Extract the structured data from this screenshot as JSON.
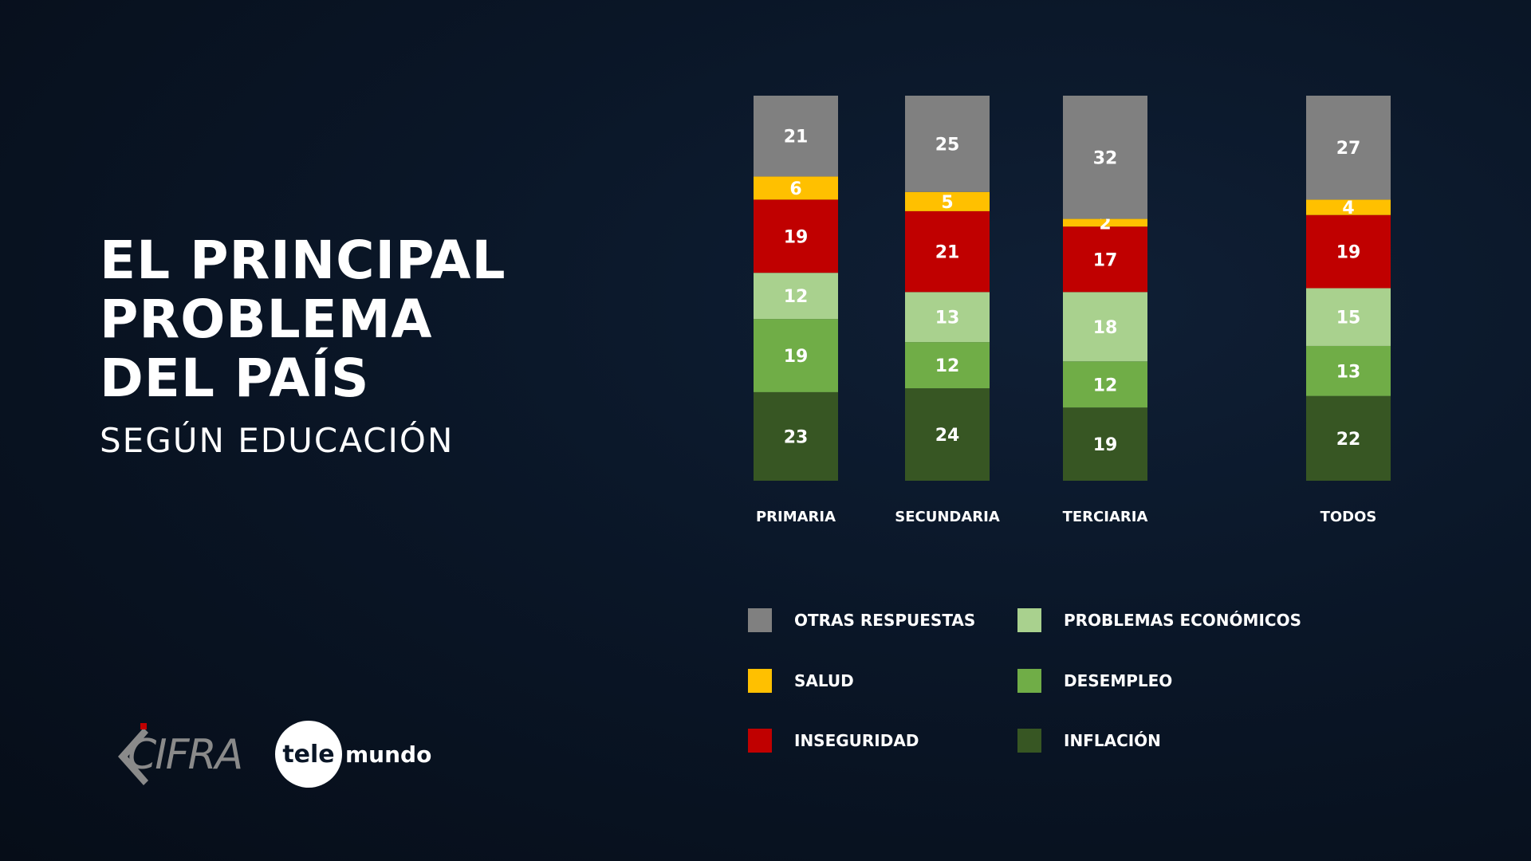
{
  "title": {
    "lines": [
      "EL PRINCIPAL",
      "PROBLEMA",
      "DEL PAÍS"
    ],
    "subtitle": "SEGÚN EDUCACIÓN"
  },
  "logos": {
    "cifra": "CIFRA",
    "telemundo_tele": "tele",
    "telemundo_mundo": "mundo"
  },
  "colors": {
    "otras": "#808080",
    "salud": "#ffc000",
    "inseguridad": "#c00000",
    "economicos": "#a9d18e",
    "desempleo": "#70ad47",
    "inflacion": "#375623"
  },
  "chart_data": {
    "type": "bar",
    "stacked": true,
    "categories": [
      "PRIMARIA",
      "SECUNDARIA",
      "TERCIARIA",
      "TODOS"
    ],
    "series": [
      {
        "name": "INFLACIÓN",
        "key": "inflacion",
        "values": [
          23,
          24,
          19,
          22
        ]
      },
      {
        "name": "DESEMPLEO",
        "key": "desempleo",
        "values": [
          19,
          12,
          12,
          13
        ]
      },
      {
        "name": "PROBLEMAS ECONÓMICOS",
        "key": "economicos",
        "values": [
          12,
          13,
          18,
          15
        ]
      },
      {
        "name": "INSEGURIDAD",
        "key": "inseguridad",
        "values": [
          19,
          21,
          17,
          19
        ]
      },
      {
        "name": "SALUD",
        "key": "salud",
        "values": [
          6,
          5,
          2,
          4
        ]
      },
      {
        "name": "OTRAS RESPUESTAS",
        "key": "otras",
        "values": [
          21,
          25,
          32,
          27
        ]
      }
    ],
    "legend": [
      {
        "label": "OTRAS RESPUESTAS",
        "key": "otras"
      },
      {
        "label": "PROBLEMAS ECONÓMICOS",
        "key": "economicos"
      },
      {
        "label": "SALUD",
        "key": "salud"
      },
      {
        "label": "DESEMPLEO",
        "key": "desempleo"
      },
      {
        "label": "INSEGURIDAD",
        "key": "inseguridad"
      },
      {
        "label": "INFLACIÓN",
        "key": "inflacion"
      }
    ],
    "legend_placement": "bottom",
    "grid": false
  }
}
